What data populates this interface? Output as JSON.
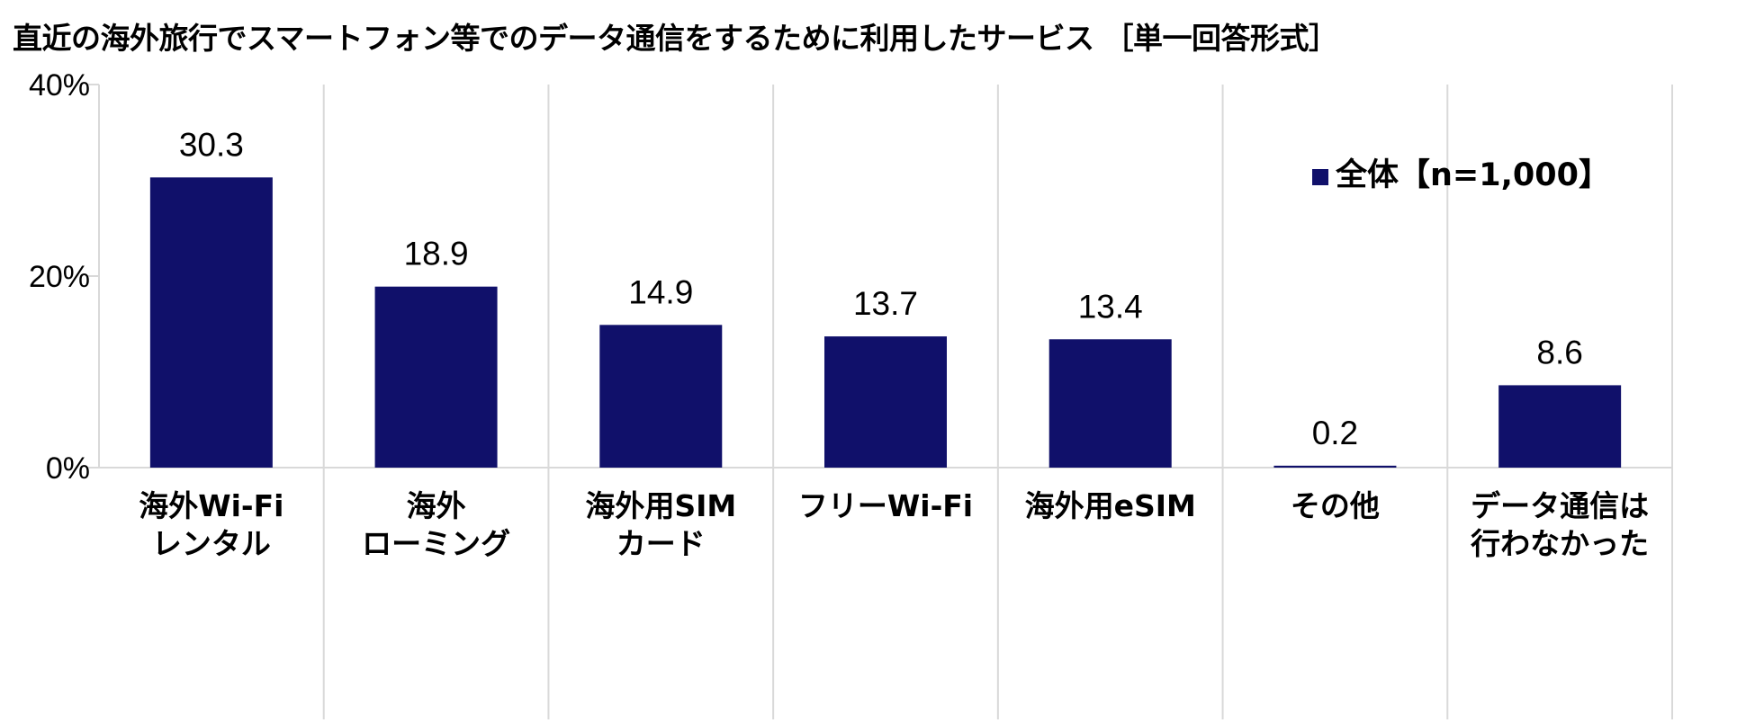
{
  "chart_data": {
    "type": "bar",
    "title": "直近の海外旅行でスマートフォン等でのデータ通信をするために利用したサービス ［単一回答形式］",
    "categories": [
      [
        "海外Wi-Fi",
        "レンタル"
      ],
      [
        "海外",
        "ローミング"
      ],
      [
        "海外用SIM",
        "カード"
      ],
      [
        "フリーWi-Fi"
      ],
      [
        "海外用eSIM"
      ],
      [
        "その他"
      ],
      [
        "データ通信は",
        "行わなかった"
      ]
    ],
    "series": [
      {
        "name": "全体【n=1,000】",
        "values": [
          30.3,
          18.9,
          14.9,
          13.7,
          13.4,
          0.2,
          8.6
        ],
        "value_labels": [
          "30.3",
          "18.9",
          "14.9",
          "13.7",
          "13.4",
          "0.2",
          "8.6"
        ],
        "color": "#10106a"
      }
    ],
    "ylim": [
      0,
      40
    ],
    "yticks": [
      0,
      20,
      40
    ],
    "ytick_labels": [
      "0%",
      "20%",
      "40%"
    ],
    "xlabel": "",
    "ylabel": "",
    "grid": "vertical separators",
    "legend_position": "top-right"
  },
  "colors": {
    "bar": "#10106a",
    "grid": "#d9d9d9",
    "axis": "#d9d9d9"
  }
}
